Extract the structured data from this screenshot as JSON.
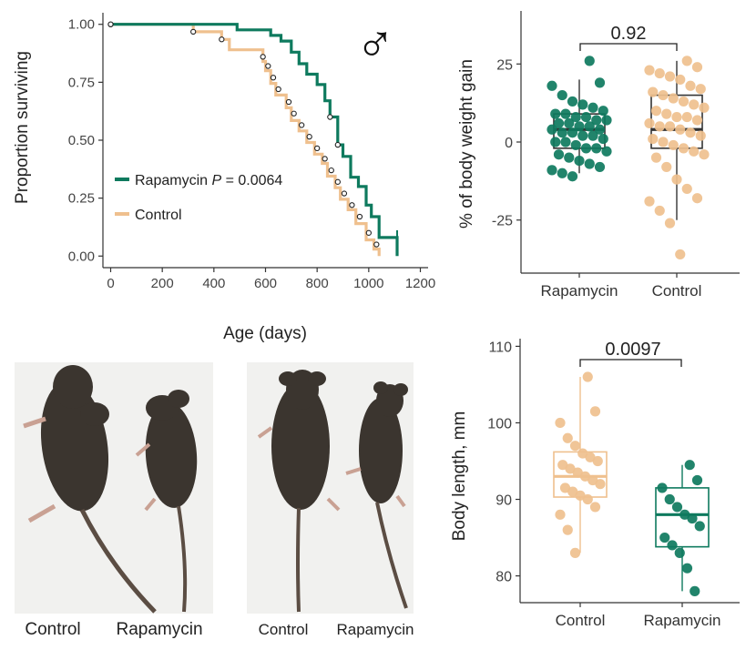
{
  "colors": {
    "rapamycin": "#0e7a5e",
    "control": "#efc08e",
    "axis": "#333333",
    "text": "#222222",
    "photo_bg": "#f1f1ef",
    "mouse_fur": "#3b352f"
  },
  "chart_data": [
    {
      "id": "survival",
      "type": "line",
      "xlabel": "Age (days)",
      "ylabel": "Proportion surviving",
      "xlim": [
        -30,
        1230
      ],
      "ylim": [
        -0.05,
        1.05
      ],
      "x_ticks": [
        "0",
        "200",
        "400",
        "600",
        "800",
        "1000",
        "1200"
      ],
      "x_tick_values": [
        0,
        200,
        400,
        600,
        800,
        1000,
        1200
      ],
      "y_ticks": [
        "0.00",
        "0.25",
        "0.50",
        "0.75",
        "1.00"
      ],
      "y_tick_values": [
        0,
        0.25,
        0.5,
        0.75,
        1.0
      ],
      "sex_symbol": "♂",
      "legend": {
        "position": "bottom-left"
      },
      "annotation": {
        "prefix": "Rapamycin ",
        "p_symbol": "P",
        "suffix": " = 0.0064"
      },
      "series": [
        {
          "name": "Rapamycin",
          "color_key": "rapamycin",
          "steps": [
            [
              0,
              1.0
            ],
            [
              490,
              1.0
            ],
            [
              490,
              0.976
            ],
            [
              620,
              0.976
            ],
            [
              620,
              0.952
            ],
            [
              660,
              0.952
            ],
            [
              660,
              0.928
            ],
            [
              700,
              0.928
            ],
            [
              700,
              0.88
            ],
            [
              730,
              0.88
            ],
            [
              730,
              0.83
            ],
            [
              760,
              0.83
            ],
            [
              760,
              0.785
            ],
            [
              800,
              0.785
            ],
            [
              800,
              0.74
            ],
            [
              830,
              0.74
            ],
            [
              830,
              0.67
            ],
            [
              850,
              0.67
            ],
            [
              850,
              0.6
            ],
            [
              880,
              0.6
            ],
            [
              880,
              0.48
            ],
            [
              900,
              0.48
            ],
            [
              900,
              0.43
            ],
            [
              930,
              0.43
            ],
            [
              930,
              0.34
            ],
            [
              960,
              0.34
            ],
            [
              960,
              0.3
            ],
            [
              990,
              0.3
            ],
            [
              990,
              0.22
            ],
            [
              1010,
              0.22
            ],
            [
              1010,
              0.17
            ],
            [
              1040,
              0.17
            ],
            [
              1040,
              0.08
            ],
            [
              1110,
              0.08
            ],
            [
              1110,
              0.0
            ]
          ],
          "censored": [
            [
              0,
              1.0
            ],
            [
              850,
              0.6
            ],
            [
              880,
              0.48
            ],
            [
              1110,
              0.08
            ]
          ]
        },
        {
          "name": "Control",
          "color_key": "control",
          "steps": [
            [
              0,
              1.0
            ],
            [
              320,
              1.0
            ],
            [
              320,
              0.968
            ],
            [
              430,
              0.968
            ],
            [
              430,
              0.935
            ],
            [
              460,
              0.935
            ],
            [
              460,
              0.89
            ],
            [
              590,
              0.89
            ],
            [
              590,
              0.84
            ],
            [
              600,
              0.84
            ],
            [
              600,
              0.8
            ],
            [
              620,
              0.8
            ],
            [
              620,
              0.745
            ],
            [
              640,
              0.745
            ],
            [
              640,
              0.695
            ],
            [
              680,
              0.695
            ],
            [
              680,
              0.64
            ],
            [
              700,
              0.64
            ],
            [
              700,
              0.585
            ],
            [
              730,
              0.585
            ],
            [
              730,
              0.54
            ],
            [
              760,
              0.54
            ],
            [
              760,
              0.49
            ],
            [
              790,
              0.49
            ],
            [
              790,
              0.44
            ],
            [
              820,
              0.44
            ],
            [
              820,
              0.4
            ],
            [
              840,
              0.4
            ],
            [
              840,
              0.345
            ],
            [
              870,
              0.345
            ],
            [
              870,
              0.295
            ],
            [
              890,
              0.295
            ],
            [
              890,
              0.245
            ],
            [
              920,
              0.245
            ],
            [
              920,
              0.2
            ],
            [
              950,
              0.2
            ],
            [
              950,
              0.14
            ],
            [
              990,
              0.14
            ],
            [
              990,
              0.07
            ],
            [
              1020,
              0.07
            ],
            [
              1020,
              0.03
            ],
            [
              1040,
              0.03
            ],
            [
              1040,
              0.0
            ]
          ],
          "censored": [
            [
              0,
              1.0
            ],
            [
              320,
              0.968
            ],
            [
              430,
              0.935
            ],
            [
              590,
              0.86
            ],
            [
              610,
              0.82
            ],
            [
              630,
              0.77
            ],
            [
              650,
              0.72
            ],
            [
              690,
              0.665
            ],
            [
              710,
              0.615
            ],
            [
              740,
              0.565
            ],
            [
              770,
              0.515
            ],
            [
              800,
              0.465
            ],
            [
              830,
              0.42
            ],
            [
              855,
              0.37
            ],
            [
              880,
              0.32
            ],
            [
              905,
              0.27
            ],
            [
              935,
              0.22
            ],
            [
              965,
              0.17
            ],
            [
              1000,
              0.1
            ],
            [
              1030,
              0.05
            ]
          ]
        }
      ]
    },
    {
      "id": "weight_gain",
      "type": "scatter",
      "ylabel": "% of body weight gain",
      "ylim": [
        -42,
        42
      ],
      "y_ticks": [
        "25",
        "0",
        "-25"
      ],
      "y_tick_values": [
        25,
        0,
        -25
      ],
      "categories": [
        "Rapamycin",
        "Control"
      ],
      "p_value": "0.92",
      "boxes": [
        {
          "name": "Rapamycin",
          "color_key": "rapamycin",
          "min": -10,
          "q1": -2,
          "median": 4,
          "q3": 9,
          "max": 20
        },
        {
          "name": "Control",
          "color_key": "control",
          "min": -25,
          "q1": -2,
          "median": 4,
          "q3": 15,
          "max": 26
        }
      ],
      "series": [
        {
          "name": "Rapamycin",
          "color_key": "rapamycin",
          "values": [
            26,
            19,
            18,
            15,
            13,
            12,
            11,
            10,
            9,
            9,
            8,
            8,
            7,
            7,
            6,
            6,
            5,
            5,
            4,
            4,
            3,
            3,
            2,
            2,
            1,
            0,
            0,
            -1,
            -2,
            -2,
            -3,
            -4,
            -5,
            -6,
            -7,
            -8,
            -9,
            -10,
            -11
          ]
        },
        {
          "name": "Control",
          "color_key": "control",
          "values": [
            26,
            24,
            23,
            22,
            21,
            20,
            18,
            17,
            16,
            15,
            14,
            13,
            12,
            11,
            10,
            9,
            8,
            8,
            7,
            6,
            5,
            5,
            4,
            3,
            2,
            1,
            0,
            -1,
            -2,
            -3,
            -4,
            -5,
            -8,
            -12,
            -15,
            -18,
            -19,
            -22,
            -26,
            -36
          ]
        }
      ]
    },
    {
      "id": "body_length",
      "type": "scatter",
      "ylabel": "Body length, mm",
      "ylim": [
        76.5,
        111
      ],
      "y_ticks": [
        "110",
        "100",
        "90",
        "80"
      ],
      "y_tick_values": [
        110,
        100,
        90,
        80
      ],
      "categories": [
        "Control",
        "Rapamycin"
      ],
      "p_value": "0.0097",
      "boxes": [
        {
          "name": "Control",
          "color_key": "control",
          "min": 83,
          "q1": 90.3,
          "median": 93,
          "q3": 96.2,
          "max": 106
        },
        {
          "name": "Rapamycin",
          "color_key": "rapamycin",
          "min": 78,
          "q1": 83.8,
          "median": 88,
          "q3": 91.5,
          "max": 94.5
        }
      ],
      "series": [
        {
          "name": "Control",
          "color_key": "control",
          "values": [
            106,
            101.5,
            100,
            98,
            97,
            96,
            95.5,
            95,
            94.5,
            94,
            93.5,
            93,
            92.5,
            92,
            91.5,
            91,
            90.5,
            90,
            89,
            88,
            86,
            83
          ]
        },
        {
          "name": "Rapamycin",
          "color_key": "rapamycin",
          "values": [
            94.5,
            92.5,
            91.5,
            90,
            89,
            88,
            87.5,
            86.5,
            85,
            84,
            83,
            81,
            78
          ]
        }
      ]
    }
  ],
  "photos": {
    "left": {
      "labels": [
        "Control",
        "Rapamycin"
      ]
    },
    "right": {
      "labels": [
        "Control",
        "Rapamycin"
      ]
    }
  }
}
